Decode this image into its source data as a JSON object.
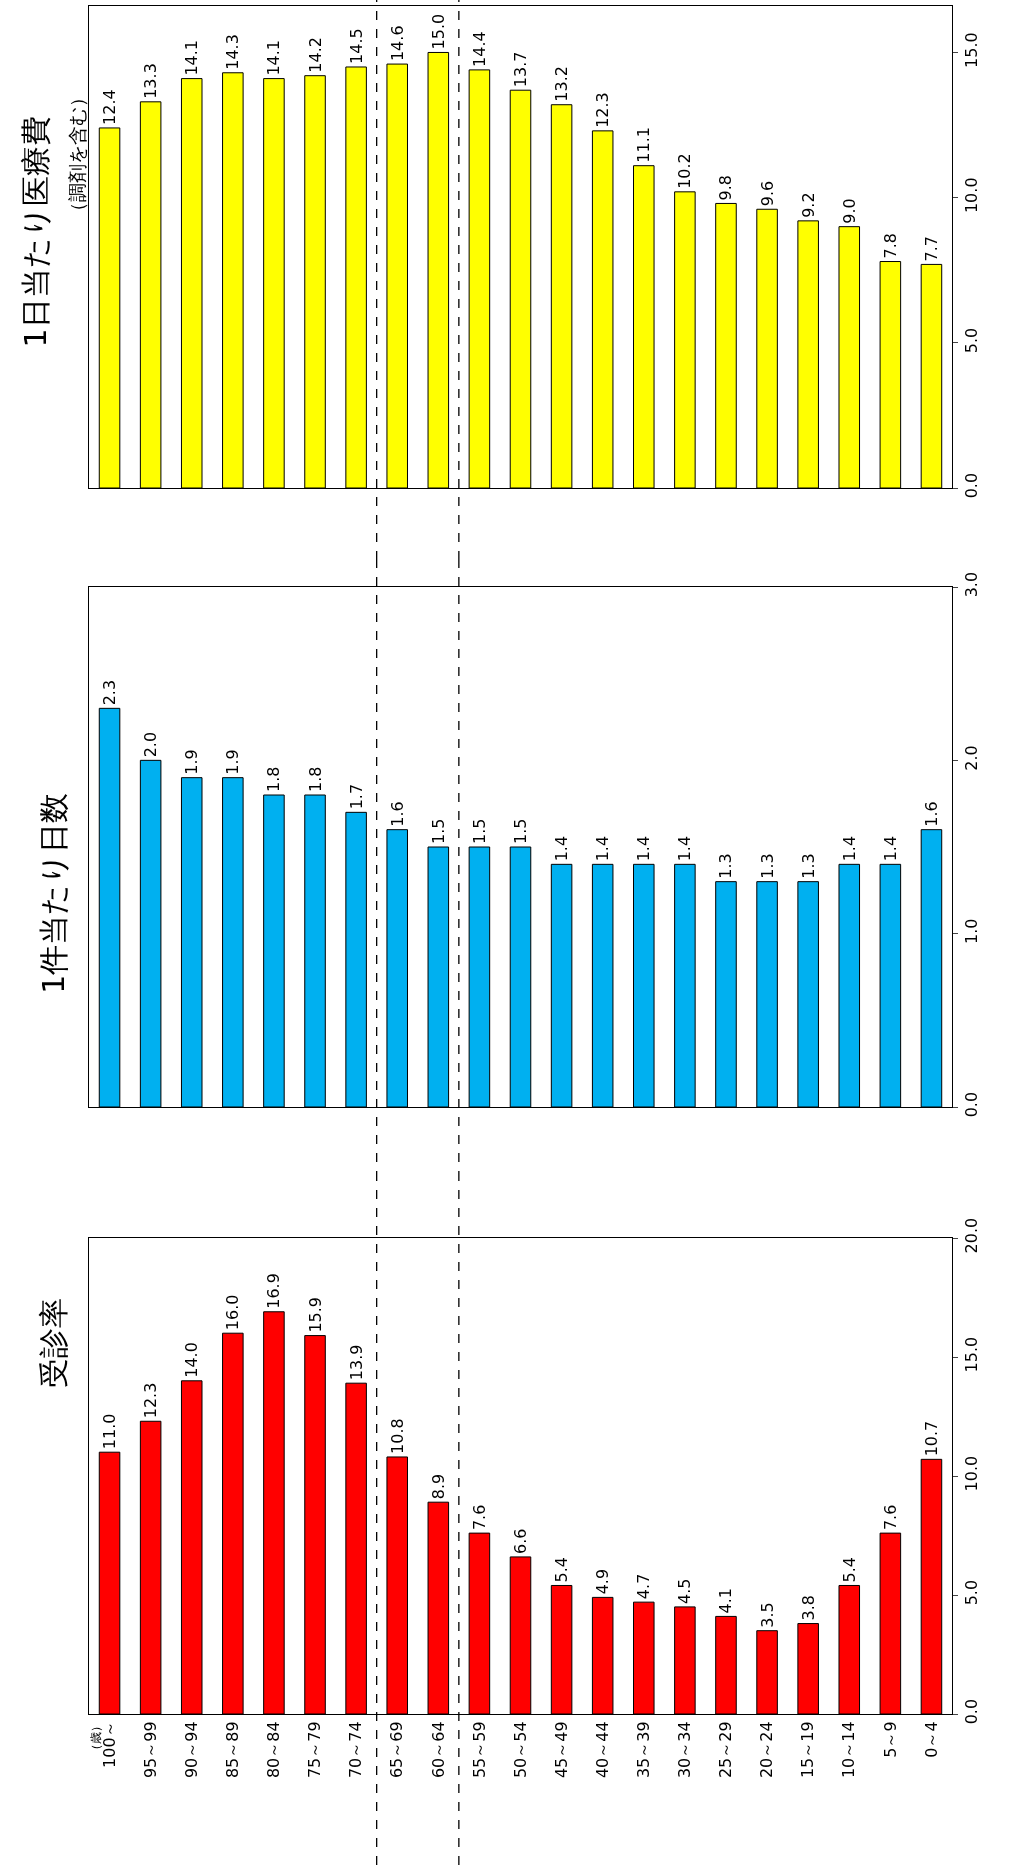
{
  "chart_data": [
    {
      "type": "bar",
      "title": "受診率",
      "annotations": [
        "（歳）"
      ],
      "categories": [
        "100～",
        "95～99",
        "90～94",
        "85～89",
        "80～84",
        "75～79",
        "70～74",
        "65～69",
        "60～64",
        "55～59",
        "50～54",
        "45～49",
        "40～44",
        "35～39",
        "30～34",
        "25～29",
        "20～24",
        "15～19",
        "10～14",
        "5～9",
        "0～4"
      ],
      "values": [
        11.0,
        12.3,
        14.0,
        16.0,
        16.9,
        15.9,
        13.9,
        10.8,
        8.9,
        7.6,
        6.6,
        5.4,
        4.9,
        4.7,
        4.5,
        4.1,
        3.5,
        3.8,
        5.4,
        7.6,
        10.7
      ],
      "value_labels": [
        "11.0",
        "12.3",
        "14.0",
        "16.0",
        "16.9",
        "15.9",
        "13.9",
        "10.8",
        "8.9",
        "7.6",
        "6.6",
        "5.4",
        "4.9",
        "4.7",
        "4.5",
        "4.1",
        "3.5",
        "3.8",
        "5.4",
        "7.6",
        "10.7"
      ],
      "color": "#ff0000",
      "ylim": [
        0,
        20
      ],
      "yticks": [
        {
          "value": 0,
          "label": "0.0"
        },
        {
          "value": 5,
          "label": "5.0"
        },
        {
          "value": 10,
          "label": "10.0"
        },
        {
          "value": 15,
          "label": "15.0"
        },
        {
          "value": 20,
          "label": "20.0"
        }
      ]
    },
    {
      "type": "bar",
      "title": "1件当たり日数",
      "tick_labels": "y",
      "categories": [
        null,
        null,
        null,
        null,
        null,
        null,
        null,
        null,
        null,
        null,
        null,
        null,
        null,
        null,
        null,
        null,
        null,
        null,
        null,
        null,
        null
      ],
      "values": [
        2.3,
        2.0,
        1.9,
        1.9,
        1.8,
        1.8,
        1.7,
        1.6,
        1.5,
        1.5,
        1.5,
        1.4,
        1.4,
        1.4,
        1.4,
        1.3,
        1.3,
        1.3,
        1.4,
        1.4,
        1.6
      ],
      "value_labels": [
        "2.3",
        "2.0",
        "1.9",
        "1.9",
        "1.8",
        "1.8",
        "1.7",
        "1.6",
        "1.5",
        "1.5",
        "1.5",
        "1.4",
        "1.4",
        "1.4",
        "1.4",
        "1.3",
        "1.3",
        "1.3",
        "1.4",
        "1.4",
        "1.6"
      ],
      "color": "#00b0f0",
      "ylim": [
        0,
        3
      ],
      "yticks": [
        {
          "value": 0,
          "label": "0.0"
        },
        {
          "value": 1,
          "label": "1.0"
        },
        {
          "value": 2,
          "label": "2.0"
        },
        {
          "value": 3,
          "label": "3.0"
        }
      ]
    },
    {
      "type": "bar",
      "title": "1日当たり医療費",
      "subtitle": "（調剤を含む）",
      "tick_labels": "y",
      "categories": [
        null,
        null,
        null,
        null,
        null,
        null,
        null,
        null,
        null,
        null,
        null,
        null,
        null,
        null,
        null,
        null,
        null,
        null,
        null,
        null,
        null
      ],
      "values": [
        12.4,
        13.3,
        14.1,
        14.3,
        14.1,
        14.2,
        14.5,
        14.6,
        15.0,
        14.4,
        13.7,
        13.2,
        12.3,
        11.1,
        10.2,
        9.8,
        9.6,
        9.2,
        9.0,
        7.8,
        7.7
      ],
      "value_labels": [
        "12.4",
        "13.3",
        "14.1",
        "14.3",
        "14.1",
        "14.2",
        "14.5",
        "14.6",
        "15.0",
        "14.4",
        "13.7",
        "13.2",
        "12.3",
        "11.1",
        "10.2",
        "9.8",
        "9.6",
        "9.2",
        "9.0",
        "7.8",
        "7.7"
      ],
      "color": "#ffff00",
      "ylim": [
        0,
        16.6
      ],
      "yticks": [
        {
          "value": 0,
          "label": "0.0"
        },
        {
          "value": 5,
          "label": "5.0"
        },
        {
          "value": 10,
          "label": "10.0"
        },
        {
          "value": 15,
          "label": "15.0"
        }
      ]
    }
  ]
}
